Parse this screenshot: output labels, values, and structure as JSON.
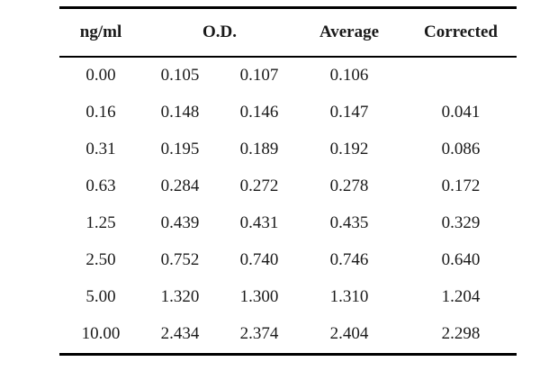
{
  "table": {
    "headers": {
      "concentration": "ng/ml",
      "od": "O.D.",
      "average": "Average",
      "corrected": "Corrected"
    },
    "rows": [
      {
        "conc": "0.00",
        "od1": "0.105",
        "od2": "0.107",
        "avg": "0.106",
        "corr": ""
      },
      {
        "conc": "0.16",
        "od1": "0.148",
        "od2": "0.146",
        "avg": "0.147",
        "corr": "0.041"
      },
      {
        "conc": "0.31",
        "od1": "0.195",
        "od2": "0.189",
        "avg": "0.192",
        "corr": "0.086"
      },
      {
        "conc": "0.63",
        "od1": "0.284",
        "od2": "0.272",
        "avg": "0.278",
        "corr": "0.172"
      },
      {
        "conc": "1.25",
        "od1": "0.439",
        "od2": "0.431",
        "avg": "0.435",
        "corr": "0.329"
      },
      {
        "conc": "2.50",
        "od1": "0.752",
        "od2": "0.740",
        "avg": "0.746",
        "corr": "0.640"
      },
      {
        "conc": "5.00",
        "od1": "1.320",
        "od2": "1.300",
        "avg": "1.310",
        "corr": "1.204"
      },
      {
        "conc": "10.00",
        "od1": "2.434",
        "od2": "2.374",
        "avg": "2.404",
        "corr": "2.298"
      }
    ]
  }
}
